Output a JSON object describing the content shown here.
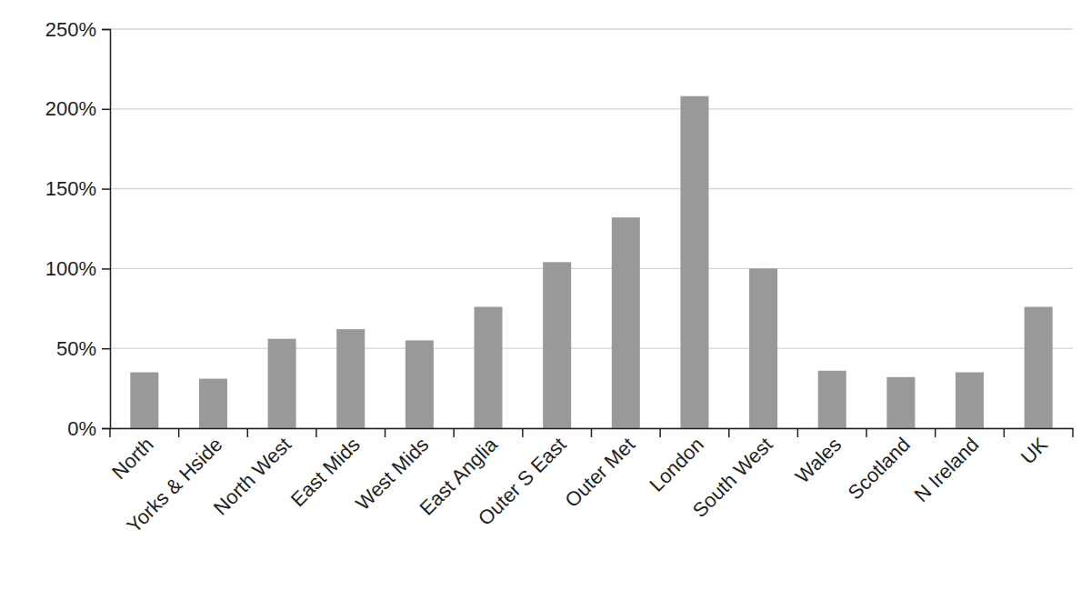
{
  "chart_data": {
    "type": "bar",
    "categories": [
      "North",
      "Yorks & Hside",
      "North West",
      "East Mids",
      "West Mids",
      "East Anglia",
      "Outer S East",
      "Outer Met",
      "London",
      "South West",
      "Wales",
      "Scotland",
      "N Ireland",
      "UK"
    ],
    "values": [
      35,
      31,
      56,
      62,
      55,
      76,
      104,
      132,
      208,
      100,
      36,
      32,
      35,
      76
    ],
    "color": "#999999",
    "ylim": [
      0,
      250
    ],
    "yticks": [
      {
        "value": 0,
        "label": "0%"
      },
      {
        "value": 50,
        "label": "50%"
      },
      {
        "value": 100,
        "label": "100%"
      },
      {
        "value": 150,
        "label": "150%"
      },
      {
        "value": 200,
        "label": "200%"
      },
      {
        "value": 250,
        "label": "250%"
      }
    ],
    "grid": true
  }
}
